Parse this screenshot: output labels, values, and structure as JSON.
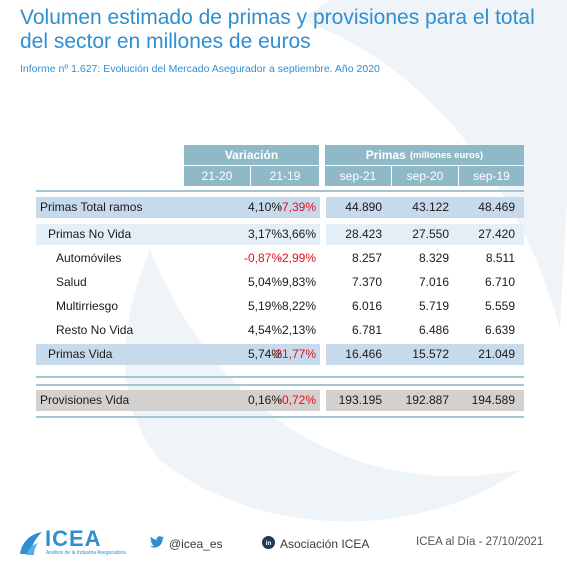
{
  "title": "Volumen estimado de primas y provisiones para el total del sector en millones de euros",
  "subtitle": "Informe nº 1.627: Evolución del Mercado Asegurador a septiembre. Año 2020",
  "table": {
    "group_variacion": "Variación",
    "group_primas": "Primas",
    "group_primas_unit": "(millones euros)",
    "columns": [
      "21-20",
      "21-19",
      "sep-21",
      "sep-20",
      "sep-19"
    ],
    "rows": [
      {
        "label": "Primas Total ramos",
        "v1": "4,10%",
        "v2": "-7,39%",
        "p1": "44.890",
        "p2": "43.122",
        "p3": "48.469"
      },
      {
        "label": "Primas No Vida",
        "v1": "3,17%",
        "v2": "3,66%",
        "p1": "28.423",
        "p2": "27.550",
        "p3": "27.420"
      },
      {
        "label": "Automóviles",
        "v1": "-0,87%",
        "v2": "-2,99%",
        "p1": "8.257",
        "p2": "8.329",
        "p3": "8.511"
      },
      {
        "label": "Salud",
        "v1": "5,04%",
        "v2": "9,83%",
        "p1": "7.370",
        "p2": "7.016",
        "p3": "6.710"
      },
      {
        "label": "Multirriesgo",
        "v1": "5,19%",
        "v2": "8,22%",
        "p1": "6.016",
        "p2": "5.719",
        "p3": "5.559"
      },
      {
        "label": "Resto No Vida",
        "v1": "4,54%",
        "v2": "2,13%",
        "p1": "6.781",
        "p2": "6.486",
        "p3": "6.639"
      },
      {
        "label": "Primas Vida",
        "v1": "5,74%",
        "v2": "-21,77%",
        "p1": "16.466",
        "p2": "15.572",
        "p3": "21.049"
      },
      {
        "label": "Provisiones Vida",
        "v1": "0,16%",
        "v2": "-0,72%",
        "p1": "193.195",
        "p2": "192.887",
        "p3": "194.589"
      }
    ]
  },
  "footer": {
    "logo": "ICEA",
    "logo_tagline": "Análisis de la Industria Aseguradora",
    "twitter": "@icea_es",
    "linkedin": "Asociación ICEA",
    "date": "ICEA al Día - 27/10/2021"
  },
  "colors": {
    "accent": "#2f8fd0",
    "header_bg": "#8fb9c7",
    "row_blue": "#c6daec",
    "row_light": "#e3eef6",
    "row_gray": "#d4d0cd",
    "negative": "#e0101a"
  }
}
